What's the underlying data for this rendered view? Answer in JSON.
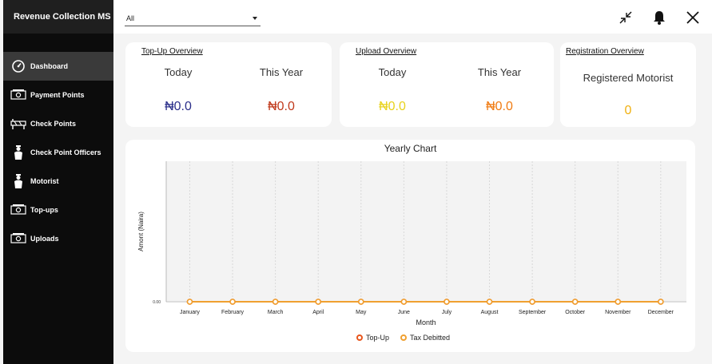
{
  "sidebar": {
    "brand": "Revenue Collection MS",
    "items": [
      {
        "label": "Dashboard",
        "icon": "dashboard-gauge-icon",
        "active": true
      },
      {
        "label": "Payment Points",
        "icon": "cash-icon"
      },
      {
        "label": "Check Points",
        "icon": "barrier-icon"
      },
      {
        "label": "Check Point Officers",
        "icon": "officer-icon"
      },
      {
        "label": "Motorist",
        "icon": "person-icon"
      },
      {
        "label": "Top-ups",
        "icon": "cash-icon"
      },
      {
        "label": "Uploads",
        "icon": "cash-icon"
      }
    ]
  },
  "topbar": {
    "filter_value": "All",
    "icons": [
      "collapse-icon",
      "bell-icon",
      "close-icon"
    ]
  },
  "topup": {
    "title": "Top-Up Overview",
    "today_label": "Today",
    "year_label": "This Year",
    "today_value": "₦0.0",
    "year_value": "₦0.0",
    "today_color": "#2b2f8a",
    "year_color": "#c0391b"
  },
  "upload": {
    "title": "Upload Overview",
    "today_label": "Today",
    "year_label": "This Year",
    "today_value": "₦0.0",
    "year_value": "₦0.0",
    "today_color": "#e8d21c",
    "year_color": "#f07b12"
  },
  "registration": {
    "title": "Registration Overview",
    "label": "Registered Motorist",
    "value": "0",
    "value_color": "#f0b010"
  },
  "chart_data": {
    "type": "line",
    "title": "Yearly Chart",
    "xlabel": "Month",
    "ylabel": "Amont (Naira)",
    "categories": [
      "January",
      "February",
      "March",
      "April",
      "May",
      "June",
      "July",
      "August",
      "September",
      "October",
      "November",
      "December"
    ],
    "y_ticks": [
      "0.00"
    ],
    "ylim": [
      0,
      1
    ],
    "grid": true,
    "legend_position": "bottom",
    "series": [
      {
        "name": "Top-Up",
        "color": "#e8561c",
        "values": [
          0,
          0,
          0,
          0,
          0,
          0,
          0,
          0,
          0,
          0,
          0,
          0
        ]
      },
      {
        "name": "Tax Debitted",
        "color": "#f0a030",
        "values": [
          0,
          0,
          0,
          0,
          0,
          0,
          0,
          0,
          0,
          0,
          0,
          0
        ]
      }
    ]
  }
}
